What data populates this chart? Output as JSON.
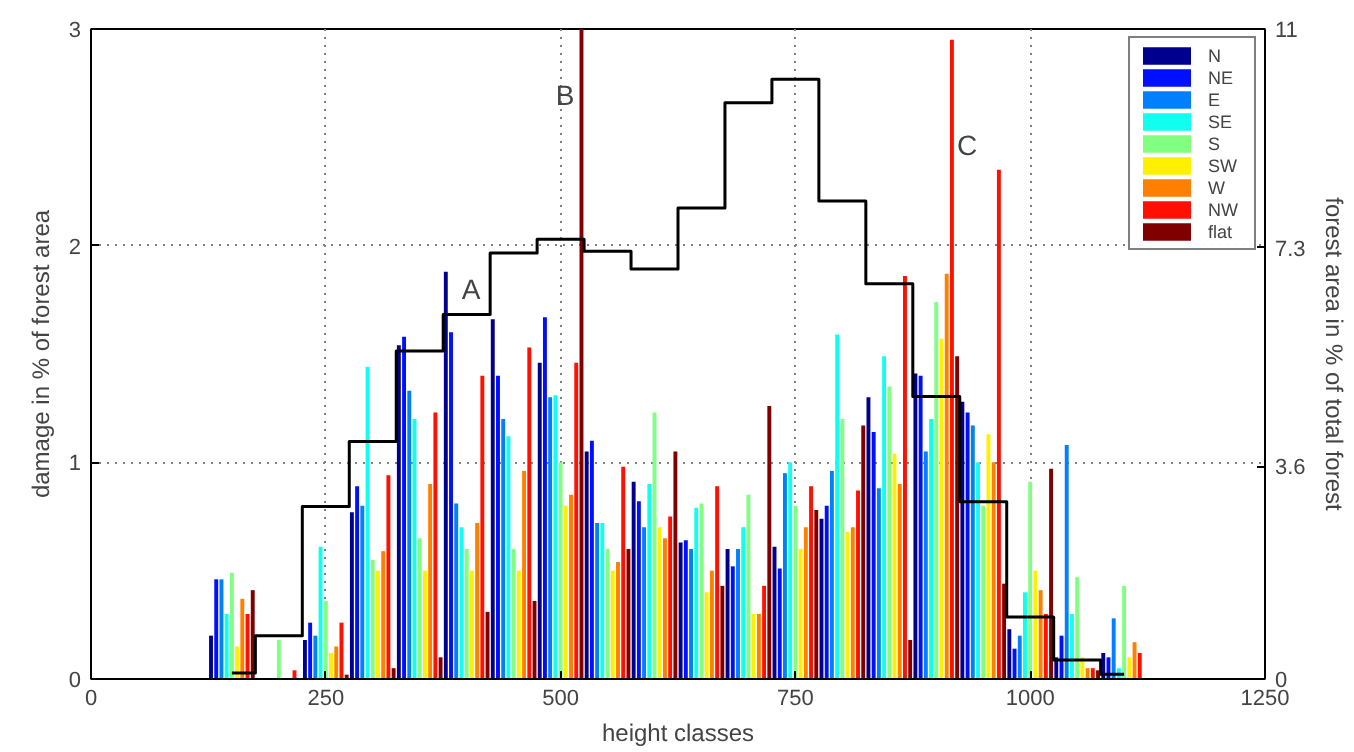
{
  "chart_data": {
    "type": "bar",
    "xlabel": "height classes",
    "ylabel": "damage in % of forest area",
    "y2label": "forest area in % of total forest",
    "x": [
      150,
      200,
      250,
      300,
      350,
      400,
      450,
      500,
      550,
      600,
      650,
      700,
      750,
      800,
      850,
      900,
      950,
      1000,
      1050,
      1100
    ],
    "xlim": [
      0,
      1250
    ],
    "xticks": [
      0,
      250,
      500,
      750,
      1000,
      1250
    ],
    "ylim": [
      0,
      3
    ],
    "yticks": [
      0,
      1,
      2,
      3
    ],
    "y2lim": [
      0,
      11
    ],
    "y2ticks": [
      0,
      3.6,
      7.3,
      11
    ],
    "grid": true,
    "legend": "top right",
    "series": [
      {
        "name": "N",
        "color": "#00008f",
        "values": [
          0.2,
          0,
          0.18,
          0.77,
          1.54,
          1.88,
          1.66,
          1.46,
          1.05,
          0.91,
          0.63,
          0.6,
          0.61,
          0.74,
          1.3,
          1.41,
          1.28,
          0.23,
          0.1,
          0.12
        ]
      },
      {
        "name": "NE",
        "color": "#0010ff",
        "values": [
          0.46,
          0,
          0.26,
          0.89,
          1.58,
          1.6,
          1.4,
          1.67,
          1.1,
          0.82,
          0.64,
          0.52,
          0.51,
          0.8,
          1.14,
          1.4,
          1.23,
          0.14,
          0.2,
          0.1
        ]
      },
      {
        "name": "E",
        "color": "#0080ff",
        "values": [
          0.46,
          0,
          0.2,
          0.8,
          1.33,
          0.81,
          1.2,
          1.3,
          0.72,
          0.7,
          0.6,
          0.6,
          0.95,
          0.96,
          0.88,
          1.05,
          1.17,
          0.2,
          1.08,
          0.28
        ]
      },
      {
        "name": "SE",
        "color": "#10ffef",
        "values": [
          0.3,
          0,
          0.61,
          1.44,
          1.2,
          0.7,
          1.12,
          1.31,
          0.72,
          0.9,
          0.79,
          0.7,
          1.0,
          1.59,
          1.49,
          1.2,
          1.0,
          0.4,
          0.3,
          0.05
        ]
      },
      {
        "name": "S",
        "color": "#80ff80",
        "values": [
          0.49,
          0.18,
          0.36,
          0.55,
          0.65,
          0.6,
          0.6,
          1.0,
          0.6,
          1.23,
          0.81,
          0.85,
          0.8,
          1.2,
          1.35,
          1.74,
          0.8,
          0.91,
          0.47,
          0.43
        ]
      },
      {
        "name": "SW",
        "color": "#ffef00",
        "values": [
          0.15,
          0,
          0.12,
          0.5,
          0.5,
          0.5,
          0.5,
          0.8,
          0.5,
          0.7,
          0.4,
          0.3,
          0.6,
          0.68,
          1.04,
          1.57,
          1.13,
          0.5,
          0.1,
          0.1
        ]
      },
      {
        "name": "W",
        "color": "#ff8000",
        "values": [
          0.37,
          0,
          0.15,
          0.59,
          0.9,
          0.72,
          0.96,
          0.85,
          0.54,
          0.65,
          0.5,
          0.3,
          0.7,
          0.7,
          0.9,
          1.87,
          1.0,
          0.41,
          0.05,
          0.17
        ]
      },
      {
        "name": "NW",
        "color": "#ff1000",
        "values": [
          0.3,
          0.04,
          0.26,
          0.94,
          1.23,
          1.4,
          1.53,
          1.46,
          0.98,
          0.75,
          0.89,
          0.43,
          0.89,
          0.87,
          1.86,
          2.95,
          2.35,
          0.3,
          0.05,
          0.12
        ]
      },
      {
        "name": "flat",
        "color": "#800000",
        "values": [
          0.41,
          0,
          0.02,
          0.05,
          0.1,
          0.31,
          0.36,
          3.0,
          0.6,
          1.05,
          0.43,
          1.26,
          0.78,
          1.17,
          0.18,
          1.49,
          0.44,
          0.97,
          0.04,
          0
        ]
      },
      {
        "type": "step",
        "axis": "y2",
        "color": "#000000",
        "values": [
          0.1,
          0.73,
          2.92,
          4.02,
          5.55,
          6.17,
          7.21,
          7.44,
          7.24,
          6.94,
          7.97,
          9.75,
          10.15,
          8.09,
          6.69,
          4.78,
          3.0,
          1.05,
          0.32,
          0.08
        ]
      }
    ],
    "annotations": [
      "A",
      "B",
      "C"
    ]
  }
}
